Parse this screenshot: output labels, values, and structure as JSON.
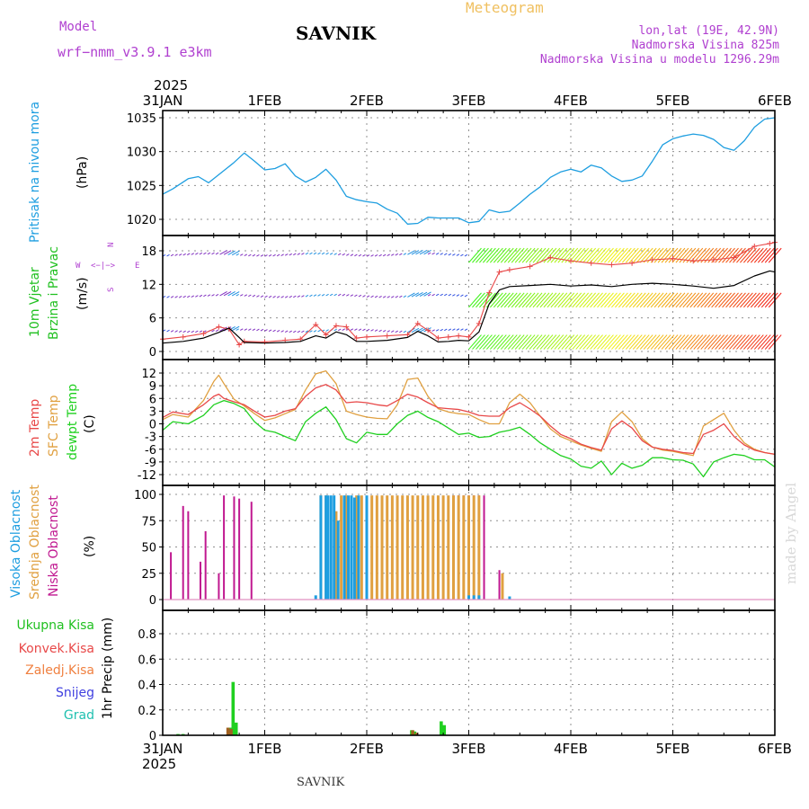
{
  "header": {
    "model_label": "Model",
    "model_name": "wrf−nmm_v3.9.1 e3km",
    "station": "SAVNIK",
    "title": "Meteogram",
    "coords": "lon,lat (19E, 42.9N)",
    "elevation": "Nadmorska Visina 825m",
    "model_elevation": "Nadmorska Visina u modelu 1296.29m",
    "year_top": "2025",
    "year_bottom": "2025",
    "footer_station": "SAVNIK",
    "credit": "made by Angel"
  },
  "colors": {
    "pressure": "#1e9ee0",
    "wind_label": "#20c020",
    "temp2m": "#e84848",
    "sfc": "#e0a040",
    "dewpt": "#20d020",
    "high_cloud": "#1e9ee0",
    "mid_cloud": "#e0a040",
    "low_cloud": "#c01890",
    "purple": "#b040d0",
    "orange_title": "#f0c060",
    "snow": "#4040e0",
    "grad": "#20c0b0",
    "conv": "#e84848",
    "zaledj": "#f08040",
    "black": "#000000"
  },
  "chart_data": [
    {
      "type": "line",
      "panel": "pressure",
      "ylabel_main": "Pritisak na nivou mora",
      "ylabel_unit": "(hPa)",
      "x_day_labels": [
        "31JAN",
        "1FEB",
        "2FEB",
        "3FEB",
        "4FEB",
        "5FEB",
        "6FEB"
      ],
      "xlim_days": [
        0,
        6
      ],
      "ylim": [
        1018,
        1036
      ],
      "yticks": [
        1020,
        1025,
        1030,
        1035
      ],
      "series": [
        {
          "name": "Pritisak",
          "x": [
            0,
            0.1,
            0.15,
            0.25,
            0.35,
            0.45,
            0.5,
            0.6,
            0.7,
            0.8,
            0.9,
            1.0,
            1.1,
            1.2,
            1.3,
            1.4,
            1.5,
            1.6,
            1.7,
            1.8,
            1.9,
            2.0,
            2.1,
            2.2,
            2.3,
            2.4,
            2.5,
            2.6,
            2.7,
            2.8,
            2.9,
            3.0,
            3.1,
            3.2,
            3.3,
            3.4,
            3.5,
            3.6,
            3.7,
            3.8,
            3.9,
            4.0,
            4.1,
            4.2,
            4.3,
            4.4,
            4.5,
            4.6,
            4.7,
            4.8,
            4.9,
            5.0,
            5.1,
            5.2,
            5.3,
            5.4,
            5.5,
            5.6,
            5.7,
            5.8,
            5.9,
            6.0
          ],
          "values": [
            1023.7,
            1024.5,
            1025,
            1026,
            1026.3,
            1025.4,
            1026,
            1027.2,
            1028.4,
            1029.8,
            1028.6,
            1027.3,
            1027.5,
            1028.2,
            1026.4,
            1025.5,
            1026.2,
            1027.4,
            1025.8,
            1023.4,
            1022.9,
            1022.6,
            1022.4,
            1021.5,
            1020.9,
            1019.3,
            1019.4,
            1020.3,
            1020.2,
            1020.2,
            1020.2,
            1019.5,
            1019.7,
            1021.4,
            1021.0,
            1021.2,
            1022.4,
            1023.7,
            1024.8,
            1026.2,
            1027.0,
            1027.4,
            1027.0,
            1028.0,
            1027.6,
            1026.4,
            1025.6,
            1025.8,
            1026.4,
            1028.6,
            1031.0,
            1031.9,
            1032.3,
            1032.6,
            1032.4,
            1031.8,
            1030.6,
            1030.2,
            1031.6,
            1033.6,
            1034.8,
            1035
          ]
        }
      ]
    },
    {
      "type": "line",
      "panel": "wind",
      "ylabel_main": "10m Vjetar",
      "ylabel_main2": "Brzina i Pravac",
      "ylabel_unit": "(m/s)",
      "compass": {
        "north": "N",
        "west": "W",
        "east": "E",
        "south": "S",
        "arrow": "<−|−>"
      },
      "ylim": [
        -1.5,
        20
      ],
      "yticks": [
        0,
        6,
        12,
        18
      ],
      "series": [
        {
          "name": "Brzina (mean)",
          "x": [
            0,
            0.2,
            0.4,
            0.55,
            0.65,
            0.75,
            0.8,
            1.0,
            1.2,
            1.35,
            1.5,
            1.6,
            1.7,
            1.8,
            1.9,
            2.0,
            2.2,
            2.4,
            2.5,
            2.6,
            2.7,
            2.8,
            2.9,
            3.0,
            3.1,
            3.2,
            3.3,
            3.4,
            3.6,
            3.8,
            4.0,
            4.2,
            4.4,
            4.6,
            4.8,
            5.0,
            5.2,
            5.4,
            5.6,
            5.8,
            5.95,
            6.0
          ],
          "values": [
            1.5,
            1.8,
            2.4,
            3.4,
            4.2,
            2.5,
            1.6,
            1.5,
            1.6,
            1.8,
            2.8,
            2.4,
            3.5,
            3.0,
            1.8,
            1.8,
            2.0,
            2.5,
            3.6,
            2.8,
            1.7,
            1.8,
            2.0,
            1.9,
            3.5,
            8.5,
            11.0,
            11.6,
            11.8,
            12.0,
            11.7,
            11.9,
            11.6,
            12.0,
            12.2,
            12.0,
            11.7,
            11.3,
            11.8,
            13.5,
            14.4,
            14.2
          ]
        },
        {
          "name": "Udari (gust)",
          "x": [
            0,
            0.2,
            0.4,
            0.55,
            0.65,
            0.75,
            0.8,
            1.0,
            1.2,
            1.35,
            1.5,
            1.6,
            1.7,
            1.8,
            1.9,
            2.0,
            2.2,
            2.4,
            2.5,
            2.6,
            2.7,
            2.8,
            2.9,
            3.0,
            3.1,
            3.2,
            3.3,
            3.4,
            3.6,
            3.8,
            4.0,
            4.2,
            4.4,
            4.6,
            4.8,
            5.0,
            5.2,
            5.4,
            5.6,
            5.8,
            5.95,
            6.0
          ],
          "values": [
            2.2,
            2.6,
            3.2,
            4.4,
            4.0,
            1.2,
            1.8,
            1.7,
            2.0,
            2.2,
            4.8,
            3.0,
            4.6,
            4.4,
            2.4,
            2.6,
            2.8,
            3.0,
            5.0,
            3.8,
            2.4,
            2.6,
            2.8,
            2.6,
            5.0,
            10.5,
            14.2,
            14.6,
            15.2,
            16.8,
            16.2,
            15.8,
            15.5,
            15.8,
            16.4,
            16.6,
            16.2,
            16.4,
            16.8,
            18.8,
            19.3,
            19.5
          ]
        },
        {
          "name": "Vektori pravca (rows)",
          "x": [
            0,
            3,
            6
          ],
          "values": [
            2,
            9.5,
            17.5
          ]
        }
      ]
    },
    {
      "type": "line",
      "panel": "temperature",
      "ylabel_1": "2m Temp",
      "ylabel_2": "SFC Temp",
      "ylabel_3": "dewpt Temp",
      "ylabel_unit": "(C)",
      "ylim": [
        -14,
        14
      ],
      "yticks": [
        -12,
        -9,
        -6,
        -3,
        0,
        3,
        6,
        9,
        12
      ],
      "series": [
        {
          "name": "2m Temp",
          "x": [
            0,
            0.1,
            0.25,
            0.4,
            0.5,
            0.55,
            0.6,
            0.7,
            0.8,
            0.9,
            1.0,
            1.1,
            1.2,
            1.3,
            1.4,
            1.5,
            1.6,
            1.7,
            1.8,
            1.9,
            2.0,
            2.1,
            2.2,
            2.3,
            2.4,
            2.5,
            2.6,
            2.7,
            2.8,
            2.9,
            3.0,
            3.1,
            3.2,
            3.3,
            3.4,
            3.5,
            3.6,
            3.7,
            3.8,
            3.9,
            4.0,
            4.1,
            4.2,
            4.3,
            4.4,
            4.5,
            4.6,
            4.7,
            4.8,
            4.9,
            5.0,
            5.1,
            5.2,
            5.3,
            5.4,
            5.5,
            5.6,
            5.7,
            5.8,
            5.9,
            6.0
          ],
          "values": [
            1.5,
            2.8,
            2.2,
            4.5,
            6.5,
            7.0,
            6.0,
            5.2,
            4.5,
            3.0,
            1.6,
            2.0,
            3.0,
            3.6,
            6.5,
            8.5,
            9.3,
            8.0,
            5.0,
            5.2,
            5.0,
            4.5,
            4.2,
            5.5,
            7.0,
            6.3,
            5.0,
            3.8,
            3.6,
            3.4,
            2.8,
            2.0,
            1.8,
            1.8,
            3.8,
            5.0,
            3.5,
            1.8,
            -0.5,
            -2.5,
            -3.5,
            -4.8,
            -5.6,
            -6.2,
            -1.2,
            0.7,
            -1.0,
            -4.0,
            -5.5,
            -6.0,
            -6.3,
            -6.8,
            -7.0,
            -2.5,
            -1.5,
            0.0,
            -3.0,
            -5.0,
            -6.2,
            -6.8,
            -7.2
          ]
        },
        {
          "name": "SFC Temp",
          "x": [
            0,
            0.1,
            0.25,
            0.4,
            0.5,
            0.55,
            0.6,
            0.7,
            0.8,
            0.9,
            1.0,
            1.1,
            1.2,
            1.3,
            1.4,
            1.5,
            1.6,
            1.7,
            1.8,
            1.9,
            2.0,
            2.1,
            2.2,
            2.3,
            2.4,
            2.5,
            2.6,
            2.7,
            2.8,
            2.9,
            3.0,
            3.1,
            3.2,
            3.3,
            3.4,
            3.5,
            3.6,
            3.7,
            3.8,
            3.9,
            4.0,
            4.1,
            4.2,
            4.3,
            4.4,
            4.5,
            4.6,
            4.7,
            4.8,
            4.9,
            5.0,
            5.1,
            5.2,
            5.3,
            5.4,
            5.5,
            5.6,
            5.7,
            5.8,
            5.9,
            6.0
          ],
          "values": [
            1.0,
            2.2,
            1.6,
            5.5,
            10.0,
            11.5,
            9.5,
            5.8,
            4.2,
            2.4,
            0.8,
            1.4,
            2.4,
            3.4,
            8.0,
            11.8,
            12.5,
            9.5,
            3.0,
            2.2,
            1.6,
            1.3,
            1.2,
            4.5,
            10.5,
            10.8,
            6.5,
            3.6,
            2.8,
            2.4,
            2.2,
            1.0,
            0.0,
            0.0,
            5.0,
            7.0,
            5.0,
            1.8,
            -1.2,
            -3.0,
            -4.0,
            -5.0,
            -5.8,
            -6.5,
            0.5,
            2.8,
            0.5,
            -3.5,
            -5.5,
            -6.2,
            -6.5,
            -7.0,
            -7.5,
            -0.5,
            1.0,
            2.5,
            -1.5,
            -4.5,
            -6.0,
            -6.8,
            -7.2
          ]
        },
        {
          "name": "dewpt Temp",
          "x": [
            0,
            0.1,
            0.25,
            0.4,
            0.5,
            0.6,
            0.7,
            0.8,
            0.9,
            1.0,
            1.1,
            1.2,
            1.3,
            1.4,
            1.5,
            1.6,
            1.7,
            1.8,
            1.9,
            2.0,
            2.1,
            2.2,
            2.3,
            2.4,
            2.5,
            2.6,
            2.7,
            2.8,
            2.9,
            3.0,
            3.1,
            3.2,
            3.3,
            3.4,
            3.5,
            3.6,
            3.7,
            3.8,
            3.9,
            4.0,
            4.1,
            4.2,
            4.3,
            4.4,
            4.5,
            4.6,
            4.7,
            4.8,
            4.9,
            5.0,
            5.1,
            5.2,
            5.3,
            5.4,
            5.5,
            5.6,
            5.7,
            5.8,
            5.9,
            6.0
          ],
          "values": [
            -1.5,
            0.5,
            0.0,
            2.0,
            4.5,
            5.5,
            4.8,
            3.6,
            0.5,
            -1.5,
            -2.0,
            -3.0,
            -4.0,
            0.5,
            2.5,
            4.0,
            1.0,
            -3.5,
            -4.5,
            -2.0,
            -2.5,
            -2.5,
            0.0,
            2.0,
            3.0,
            1.5,
            0.5,
            -1.0,
            -2.5,
            -2.2,
            -3.2,
            -3.0,
            -2.0,
            -1.5,
            -0.8,
            -2.5,
            -4.5,
            -6.0,
            -7.5,
            -8.3,
            -10.0,
            -10.5,
            -8.8,
            -12.0,
            -9.3,
            -10.5,
            -9.8,
            -8.0,
            -8.0,
            -8.5,
            -8.6,
            -9.5,
            -12.5,
            -9.0,
            -8.0,
            -7.2,
            -7.5,
            -8.5,
            -8.5,
            -10.2
          ]
        }
      ]
    },
    {
      "type": "bar",
      "panel": "cloud",
      "ylabel_1": "Visoka Oblacnost",
      "ylabel_2": "Srednja Oblacnost",
      "ylabel_3": "Niska Oblacnost",
      "ylabel_unit": "(%)",
      "ylim": [
        0,
        100
      ],
      "yticks": [
        0,
        25,
        50,
        75,
        100
      ],
      "series": [
        {
          "name": "Niska Oblacnost",
          "x": [
            0.08,
            0.2,
            0.25,
            0.37,
            0.42,
            0.55,
            0.6,
            0.7,
            0.75,
            0.87,
            2.85,
            2.9,
            2.95,
            3.0,
            3.05,
            3.1,
            3.15,
            3.3
          ],
          "values": [
            45,
            89,
            84,
            36,
            65,
            25,
            99,
            98,
            96,
            93,
            99,
            99,
            99,
            99,
            99,
            99,
            99,
            28
          ]
        },
        {
          "name": "Srednja Oblacnost",
          "x": [
            1.55,
            1.6,
            1.7,
            1.75,
            1.8,
            1.9,
            1.95,
            2.05,
            2.1,
            2.15,
            2.2,
            2.25,
            2.3,
            2.35,
            2.4,
            2.45,
            2.5,
            2.55,
            2.6,
            2.65,
            2.7,
            2.75,
            2.8,
            2.85,
            2.9,
            2.95,
            3.0,
            3.05,
            3.1,
            3.33
          ],
          "values": [
            99,
            99,
            84,
            99,
            99,
            99,
            99,
            99,
            99,
            99,
            99,
            99,
            99,
            99,
            99,
            99,
            99,
            99,
            99,
            99,
            99,
            99,
            99,
            99,
            99,
            99,
            99,
            99,
            99,
            25
          ]
        },
        {
          "name": "Visoka Oblacnost",
          "x": [
            1.5,
            1.55,
            1.6,
            1.62,
            1.65,
            1.68,
            1.72,
            1.78,
            1.82,
            1.85,
            1.88,
            1.92,
            2.0,
            3.0,
            3.05,
            3.1,
            3.4
          ],
          "values": [
            4,
            99,
            99,
            99,
            99,
            99,
            75,
            99,
            99,
            99,
            97,
            99,
            99,
            4,
            4,
            4,
            3
          ]
        }
      ]
    },
    {
      "type": "bar",
      "panel": "precip",
      "ylabel_main": "1hr Precip",
      "ylabel_unit": "(mm)",
      "legend": [
        "Ukupna Kisa",
        "Konvek.Kisa",
        "Zaledj.Kisa",
        "Snijeg",
        "Grad"
      ],
      "ylim": [
        0,
        1.0
      ],
      "yticks": [
        0,
        0.2,
        0.4,
        0.6,
        0.8
      ],
      "yticklabels": [
        "0",
        "0.2",
        "0.4",
        "0.6",
        "0.8"
      ],
      "series": [
        {
          "name": "Ukupna Kisa",
          "x": [
            0.15,
            0.2,
            0.66,
            0.69,
            0.72,
            2.44,
            2.47,
            2.73,
            2.76
          ],
          "values": [
            0.01,
            0.01,
            0.06,
            0.42,
            0.1,
            0.04,
            0.03,
            0.11,
            0.08
          ]
        },
        {
          "name": "Zaledj.Kisa",
          "x": [
            0.64,
            0.67,
            2.45,
            2.49
          ],
          "values": [
            0.06,
            0.05,
            0.04,
            0.02
          ]
        }
      ]
    }
  ]
}
